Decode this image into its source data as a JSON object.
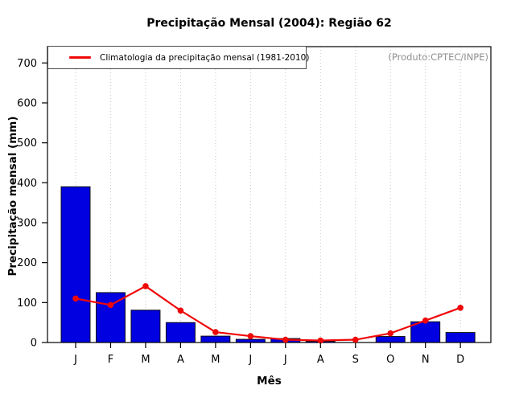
{
  "header": {
    "title": "Precipitação Mensal (2004): Região 62",
    "source_note": "(Produto:CPTEC/INPE)"
  },
  "legend": {
    "label": "Climatologia da precipitação mensal (1981-2010)"
  },
  "axes": {
    "x_label": "Mês",
    "y_label": "Precipitação mensal (mm)"
  },
  "chart_data": {
    "type": "bar",
    "title": "Precipitação Mensal (2004): Região 62",
    "xlabel": "Mês",
    "ylabel": "Precipitação mensal (mm)",
    "ylim": [
      0,
      700
    ],
    "yticks": [
      0,
      100,
      200,
      300,
      400,
      500,
      600,
      700
    ],
    "categories": [
      "J",
      "F",
      "M",
      "A",
      "M",
      "J",
      "J",
      "A",
      "S",
      "O",
      "N",
      "D"
    ],
    "grid": "vertical dotted gridline at each month",
    "legend_position": "top-left",
    "annotations": [
      "(Produto:CPTEC/INPE)"
    ],
    "series": [
      {
        "name": "Precipitação mensal 2004",
        "type": "bar",
        "color": "#0000E0",
        "values": [
          390,
          125,
          81,
          50,
          16,
          8,
          10,
          3,
          0,
          15,
          52,
          25
        ]
      },
      {
        "name": "Climatologia da precipitação mensal (1981-2010)",
        "type": "line",
        "color": "#F00808",
        "values": [
          110,
          94,
          141,
          80,
          26,
          16,
          7,
          5,
          7,
          23,
          55,
          87
        ]
      }
    ]
  },
  "colors": {
    "bar_fill": "#0000E0",
    "bar_border": "#000000",
    "line": "#F00808",
    "grid": "#C6C6C6",
    "axis": "#000000",
    "source_note": "#8F8F8F"
  }
}
